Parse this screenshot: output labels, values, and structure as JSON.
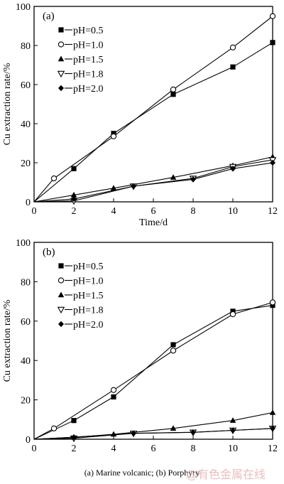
{
  "caption": "(a) Marine volcanic; (b) Porphyry",
  "watermark": "@有色金属在线",
  "chart_data": [
    {
      "type": "line",
      "panel_label": "(a)",
      "xlabel": "Time/d",
      "ylabel": "Cu extraction rate/%",
      "xlim": [
        0,
        12
      ],
      "ylim": [
        0,
        100
      ],
      "xticks": [
        0,
        2,
        4,
        6,
        8,
        10,
        12
      ],
      "yticks": [
        0,
        20,
        40,
        60,
        80,
        100
      ],
      "legend_position": "top-left",
      "series": [
        {
          "name": "pH=0.5",
          "marker": "square-filled",
          "x": [
            0,
            2,
            4,
            7,
            10,
            12
          ],
          "y": [
            0,
            17,
            35,
            55,
            69,
            81.5
          ]
        },
        {
          "name": "pH=1.0",
          "marker": "circle-open",
          "x": [
            0,
            1,
            4,
            7,
            10,
            12
          ],
          "y": [
            0,
            12,
            33.5,
            57.5,
            79,
            95
          ]
        },
        {
          "name": "pH=1.5",
          "marker": "triangle-up-filled",
          "x": [
            0,
            2,
            4,
            7,
            10,
            12
          ],
          "y": [
            0,
            3.5,
            7,
            12.5,
            18.5,
            23
          ]
        },
        {
          "name": "pH=1.8",
          "marker": "triangle-down-open",
          "x": [
            0,
            2,
            5,
            8,
            10,
            12
          ],
          "y": [
            0,
            0.5,
            8,
            12,
            18,
            21.5
          ]
        },
        {
          "name": "pH=2.0",
          "marker": "diamond-filled",
          "x": [
            0,
            2,
            5,
            8,
            10,
            12
          ],
          "y": [
            0,
            1.5,
            8,
            11.5,
            17,
            20
          ]
        }
      ]
    },
    {
      "type": "line",
      "panel_label": "(b)",
      "xlabel": "",
      "ylabel": "Cu extraction rate/%",
      "xlim": [
        0,
        12
      ],
      "ylim": [
        0,
        100
      ],
      "xticks": [
        0,
        2,
        4,
        6,
        8,
        10,
        12
      ],
      "yticks": [
        0,
        20,
        40,
        60,
        80,
        100
      ],
      "legend_position": "top-left",
      "series": [
        {
          "name": "pH=0.5",
          "marker": "square-filled",
          "x": [
            0,
            2,
            4,
            7,
            10,
            12
          ],
          "y": [
            0,
            9.5,
            21.5,
            48,
            65,
            68
          ]
        },
        {
          "name": "pH=1.0",
          "marker": "circle-open",
          "x": [
            0,
            1,
            4,
            7,
            10,
            12
          ],
          "y": [
            0,
            5.5,
            25,
            45,
            63.5,
            69.5
          ]
        },
        {
          "name": "pH=1.5",
          "marker": "triangle-up-filled",
          "x": [
            0,
            2,
            4,
            7,
            10,
            12
          ],
          "y": [
            0,
            1,
            2.5,
            5.5,
            9.5,
            13.5
          ]
        },
        {
          "name": "pH=1.8",
          "marker": "triangle-down-open",
          "x": [
            0,
            2,
            5,
            8,
            10,
            12
          ],
          "y": [
            0,
            0.5,
            3,
            3.5,
            4.5,
            5.5
          ]
        },
        {
          "name": "pH=2.0",
          "marker": "diamond-filled",
          "x": [
            0,
            2,
            5,
            8,
            10,
            12
          ],
          "y": [
            0,
            1,
            3,
            3.5,
            4.5,
            5.5
          ]
        }
      ]
    }
  ]
}
